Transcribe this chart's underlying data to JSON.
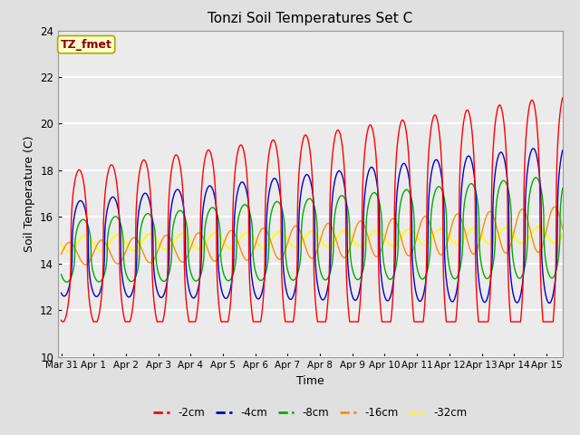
{
  "title": "Tonzi Soil Temperatures Set C",
  "xlabel": "Time",
  "ylabel": "Soil Temperature (C)",
  "ylim": [
    10,
    24
  ],
  "xlim": [
    -0.1,
    15.5
  ],
  "annotation_text": "TZ_fmet",
  "annotation_color": "#8B0000",
  "annotation_bg": "#FFFFCC",
  "series_colors": {
    "-2cm": "#FF0000",
    "-4cm": "#0000CC",
    "-8cm": "#00AA00",
    "-16cm": "#FF8C00",
    "-32cm": "#FFFF00"
  },
  "legend_labels": [
    "-2cm",
    "-4cm",
    "-8cm",
    "-16cm",
    "-32cm"
  ],
  "xtick_labels": [
    "Mar 31",
    "Apr 1",
    "Apr 2",
    "Apr 3",
    "Apr 4",
    "Apr 5",
    "Apr 6",
    "Apr 7",
    "Apr 8",
    "Apr 9",
    "Apr 10",
    "Apr 11",
    "Apr 12",
    "Apr 13",
    "Apr 14",
    "Apr 15"
  ],
  "xtick_positions": [
    0,
    1,
    2,
    3,
    4,
    5,
    6,
    7,
    8,
    9,
    10,
    11,
    12,
    13,
    14,
    15
  ],
  "ytick_positions": [
    10,
    12,
    14,
    16,
    18,
    20,
    22,
    24
  ],
  "background_color": "#E0E0E0",
  "plot_bg_color": "#EBEBEB",
  "grid_color": "white",
  "num_points_per_day": 144
}
